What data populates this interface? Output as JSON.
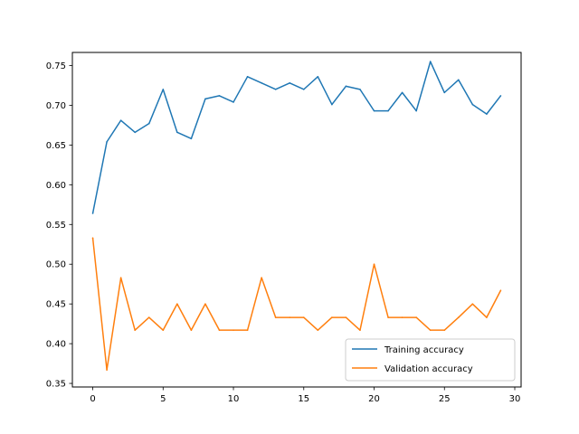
{
  "chart_data": {
    "type": "line",
    "title": "",
    "xlabel": "",
    "ylabel": "",
    "xlim": [
      -1.45,
      30.45
    ],
    "ylim": [
      0.3455,
      0.7665
    ],
    "xticks": [
      0,
      5,
      10,
      15,
      20,
      25,
      30
    ],
    "yticks": [
      0.35,
      0.4,
      0.45,
      0.5,
      0.55,
      0.6,
      0.65,
      0.7,
      0.75
    ],
    "xtick_labels": [
      "0",
      "5",
      "10",
      "15",
      "20",
      "25",
      "30"
    ],
    "ytick_labels": [
      "0.35",
      "0.40",
      "0.45",
      "0.50",
      "0.55",
      "0.60",
      "0.65",
      "0.70",
      "0.75"
    ],
    "x": [
      0,
      1,
      2,
      3,
      4,
      5,
      6,
      7,
      8,
      9,
      10,
      11,
      12,
      13,
      14,
      15,
      16,
      17,
      18,
      19,
      20,
      21,
      22,
      23,
      24,
      25,
      26,
      27,
      28,
      29
    ],
    "series": [
      {
        "name": "Training accuracy",
        "color": "#1f77b4",
        "values": [
          0.564,
          0.654,
          0.681,
          0.666,
          0.677,
          0.72,
          0.666,
          0.658,
          0.708,
          0.712,
          0.704,
          0.736,
          0.728,
          0.72,
          0.728,
          0.72,
          0.736,
          0.701,
          0.724,
          0.72,
          0.693,
          0.693,
          0.716,
          0.693,
          0.755,
          0.716,
          0.732,
          0.701,
          0.689,
          0.712
        ]
      },
      {
        "name": "Validation accuracy",
        "color": "#ff7f0e",
        "values": [
          0.533,
          0.367,
          0.483,
          0.417,
          0.433,
          0.417,
          0.45,
          0.417,
          0.45,
          0.417,
          0.417,
          0.417,
          0.483,
          0.433,
          0.433,
          0.433,
          0.417,
          0.433,
          0.433,
          0.417,
          0.5,
          0.433,
          0.433,
          0.433,
          0.417,
          0.417,
          0.433,
          0.45,
          0.433,
          0.467
        ]
      }
    ],
    "legend": {
      "position": "lower-right"
    },
    "grid": false
  }
}
